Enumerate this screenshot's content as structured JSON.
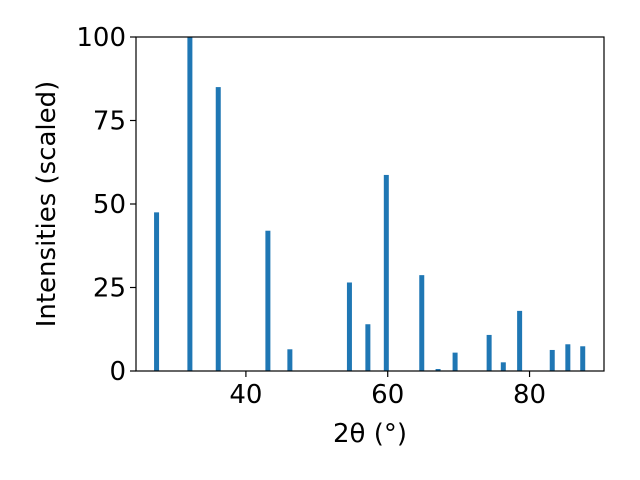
{
  "chart_data": {
    "type": "bar",
    "title": "",
    "xlabel": "2θ (°)",
    "ylabel": "Intensities (scaled)",
    "xlim": [
      24.5,
      90.5
    ],
    "ylim": [
      0,
      100
    ],
    "xticks": [
      40,
      60,
      80
    ],
    "yticks": [
      0,
      25,
      50,
      75,
      100
    ],
    "bar_color": "#1f77b4",
    "grid": false,
    "legend": "none",
    "x": [
      27.4,
      32.1,
      36.1,
      43.1,
      46.2,
      54.6,
      57.2,
      59.8,
      64.8,
      67.1,
      69.5,
      74.3,
      76.3,
      78.6,
      83.2,
      85.4,
      87.5
    ],
    "values": [
      47.5,
      100,
      85,
      42,
      6.5,
      26.5,
      14,
      58.7,
      28.7,
      0.6,
      5.5,
      10.8,
      2.6,
      18,
      6.3,
      8,
      7.4
    ]
  }
}
